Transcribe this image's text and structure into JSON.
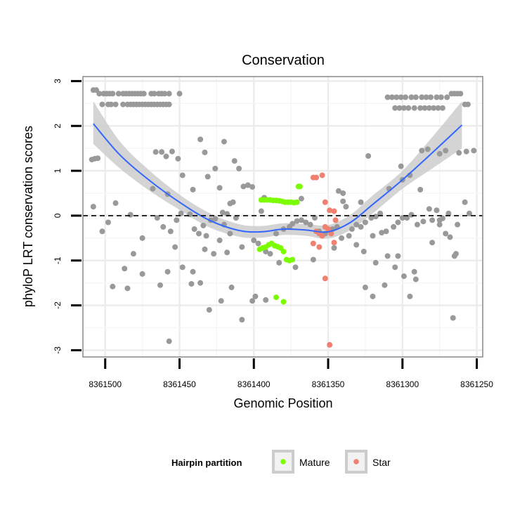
{
  "chart_data": {
    "type": "scatter",
    "title": "Conservation",
    "xlabel": "Genomic Position",
    "ylabel": "phyloP LRT conservation scores",
    "xlim": [
      8361515,
      8361246
    ],
    "ylim": [
      -3.15,
      3.1
    ],
    "x_reversed": true,
    "xticks": [
      8361500,
      8361450,
      8361400,
      8361350,
      8361300,
      8361250
    ],
    "xtick_labels": [
      "8361500",
      "8361450",
      "8361400",
      "8361350",
      "8361300",
      "8361250"
    ],
    "yticks": [
      -3,
      -2,
      -1,
      0,
      1,
      2,
      3
    ],
    "ytick_labels": [
      "-3",
      "-2",
      "-1",
      "0",
      "1",
      "2",
      "3"
    ],
    "reference_line": {
      "y": 0,
      "style": "dashed",
      "color": "#000000"
    },
    "grid": true,
    "colors": {
      "Other": "#999999",
      "Mature": "#7cfc00",
      "Star": "#f08070",
      "smooth_line": "#3366ff",
      "ribbon": "#cccccc",
      "panel_border": "#888888"
    },
    "legend": {
      "title": "Hairpin partition",
      "position": "bottom",
      "entries": [
        {
          "label": "Mature",
          "color": "#7cfc00"
        },
        {
          "label": "Star",
          "color": "#f08070"
        }
      ]
    },
    "smooth": {
      "x": [
        8361508,
        8361490,
        8361470,
        8361450,
        8361430,
        8361410,
        8361395,
        8361380,
        8361365,
        8361350,
        8361335,
        8361320,
        8361300,
        8361280,
        8361260
      ],
      "y": [
        2.05,
        1.35,
        0.78,
        0.3,
        -0.1,
        -0.33,
        -0.36,
        -0.3,
        -0.32,
        -0.36,
        -0.15,
        0.25,
        0.8,
        1.4,
        2.02
      ],
      "lower": [
        1.6,
        1.05,
        0.55,
        0.13,
        -0.26,
        -0.47,
        -0.49,
        -0.43,
        -0.45,
        -0.51,
        -0.32,
        0.05,
        0.6,
        1.05,
        1.5
      ],
      "upper": [
        2.55,
        1.65,
        1.0,
        0.47,
        0.06,
        -0.19,
        -0.23,
        -0.17,
        -0.19,
        -0.21,
        0.02,
        0.45,
        1.0,
        1.75,
        2.55
      ]
    },
    "series": [
      {
        "name": "Other",
        "x": [
          8361508,
          8361506,
          8361504,
          8361501,
          8361499,
          8361497,
          8361495,
          8361491,
          8361488,
          8361486,
          8361484,
          8361482,
          8361480,
          8361478,
          8361476,
          8361474,
          8361469,
          8361467,
          8361464,
          8361462,
          8361460,
          8361457,
          8361450,
          8361502,
          8361498,
          8361496,
          8361493,
          8361488,
          8361485,
          8361483,
          8361481,
          8361479,
          8361477,
          8361475,
          8361473,
          8361471,
          8361469,
          8361467,
          8361465,
          8361463,
          8361461,
          8361459,
          8361457,
          8361310,
          8361307,
          8361304,
          8361301,
          8361298,
          8361294,
          8361291,
          8361287,
          8361284,
          8361281,
          8361277,
          8361274,
          8361270,
          8361267,
          8361265,
          8361263,
          8361261,
          8361258,
          8361256,
          8361305,
          8361302,
          8361299,
          8361296,
          8361292,
          8361288,
          8361285,
          8361282,
          8361279,
          8361276,
          8361273,
          8361509,
          8361507,
          8361505,
          8361466,
          8361462,
          8361459,
          8361455,
          8361451,
          8361436,
          8361433,
          8361420,
          8361413,
          8361410,
          8361407,
          8361404,
          8361401,
          8361343,
          8361340,
          8361323,
          8361301,
          8361287,
          8361283,
          8361275,
          8361271,
          8361262,
          8361257,
          8361468,
          8361458,
          8361448,
          8361441,
          8361431,
          8361426,
          8361423,
          8361421,
          8361418,
          8361416,
          8361414,
          8361412,
          8361395,
          8361393,
          8361368,
          8361340,
          8361338,
          8361328,
          8361315,
          8361309,
          8361300,
          8361295,
          8361288,
          8361282,
          8361277,
          8361273,
          8361269,
          8361508,
          8361498,
          8361493,
          8361483,
          8361475,
          8361465,
          8361461,
          8361456,
          8361452,
          8361449,
          8361443,
          8361440,
          8361437,
          8361434,
          8361432,
          8361429,
          8361426,
          8361423,
          8361420,
          8361416,
          8361400,
          8361397,
          8361392,
          8361389,
          8361385,
          8361380,
          8361376,
          8361374,
          8361371,
          8361368,
          8361365,
          8361362,
          8361359,
          8361356,
          8361352,
          8361349,
          8361347,
          8361344,
          8361341,
          8361336,
          8361334,
          8361331,
          8361328,
          8361325,
          8361321,
          8361318,
          8361314,
          8361311,
          8361306,
          8361303,
          8361300,
          8361297,
          8361294,
          8361290,
          8361286,
          8361280,
          8361275,
          8361268,
          8361264,
          8361502,
          8361487,
          8361481,
          8361475,
          8361463,
          8361458,
          8361453,
          8361448,
          8361441,
          8361433,
          8361427,
          8361418,
          8361408,
          8361383,
          8361372,
          8361360,
          8361346,
          8361331,
          8361326,
          8361320,
          8361310,
          8361295,
          8361266,
          8361495,
          8361485,
          8361457,
          8361442,
          8361436,
          8361430,
          8361422,
          8361415,
          8361408,
          8361401,
          8361399,
          8361392,
          8361325,
          8361320,
          8361312,
          8361318,
          8361305,
          8361303,
          8361299,
          8361292,
          8361291,
          8361280,
          8361275,
          8361271,
          8361263,
          8361265,
          8361258,
          8361252,
          8361255
        ],
        "y": [
          2.8,
          2.8,
          2.72,
          2.72,
          2.72,
          2.72,
          2.72,
          2.72,
          2.72,
          2.72,
          2.72,
          2.72,
          2.72,
          2.72,
          2.72,
          2.72,
          2.72,
          2.72,
          2.72,
          2.72,
          2.72,
          2.72,
          2.72,
          2.48,
          2.48,
          2.48,
          2.48,
          2.48,
          2.48,
          2.48,
          2.48,
          2.48,
          2.48,
          2.48,
          2.48,
          2.48,
          2.48,
          2.48,
          2.48,
          2.48,
          2.48,
          2.48,
          2.48,
          2.64,
          2.64,
          2.64,
          2.64,
          2.64,
          2.64,
          2.64,
          2.64,
          2.64,
          2.64,
          2.64,
          2.64,
          2.64,
          2.72,
          2.72,
          2.72,
          2.72,
          2.48,
          2.48,
          2.4,
          2.4,
          2.4,
          2.4,
          2.4,
          2.4,
          2.4,
          2.4,
          2.4,
          2.4,
          2.4,
          1.25,
          1.27,
          1.28,
          1.42,
          1.42,
          1.32,
          1.43,
          1.27,
          1.7,
          1.41,
          1.65,
          1.22,
          1.05,
          0.65,
          0.68,
          0.64,
          0.55,
          0.5,
          1.33,
          1.1,
          1.45,
          1.48,
          1.38,
          1.45,
          1.4,
          1.43,
          0.6,
          0.48,
          0.9,
          0.58,
          0.87,
          1.05,
          0.62,
          0.07,
          0.04,
          0.27,
          0.3,
          -0.05,
          0.1,
          0.4,
          0.38,
          0.32,
          0.2,
          0.3,
          0.05,
          0.6,
          0.8,
          0.9,
          0.58,
          0.15,
          0.12,
          -0.06,
          0.05,
          0.2,
          -0.15,
          0.28,
          0.02,
          -0.5,
          -0.05,
          -0.25,
          -0.35,
          -0.1,
          0.05,
          0.03,
          -0.3,
          -0.4,
          -0.22,
          -0.45,
          -0.1,
          -0.07,
          -0.55,
          -0.2,
          -0.4,
          -0.55,
          -0.62,
          -0.8,
          -0.85,
          -0.4,
          -0.3,
          -0.25,
          -0.18,
          -0.12,
          -0.1,
          -0.15,
          -0.2,
          -0.05,
          -0.35,
          -0.4,
          -0.32,
          -0.3,
          -0.25,
          -0.5,
          -0.45,
          -0.3,
          -0.2,
          -0.25,
          -0.15,
          -0.05,
          -0.02,
          -0.38,
          -0.35,
          -0.25,
          -0.15,
          -0.05,
          -0.05,
          0.02,
          -0.2,
          -0.13,
          -0.1,
          -0.2,
          -0.48,
          -0.85,
          -0.35,
          -1.18,
          -0.85,
          -1.3,
          -1.55,
          -1.25,
          -0.7,
          -1.15,
          -1.25,
          -0.75,
          -0.85,
          -0.82,
          -0.7,
          -1.05,
          -1.15,
          -0.98,
          -0.72,
          -0.65,
          -0.8,
          -0.45,
          -0.9,
          -1.8,
          -2.28,
          -1.58,
          -1.62,
          -2.8,
          -1.52,
          -1.5,
          -2.1,
          -1.9,
          -1.6,
          -2.32,
          -1.9,
          -1.8,
          -1.88,
          -1.6,
          -1.8,
          -1.55,
          -1.05,
          -1.15,
          -0.9,
          -1.35,
          -1.25,
          -1.42,
          -0.6,
          -0.1,
          -0.4,
          -0.2,
          -0.9,
          0.3,
          1.45,
          0.05
        ],
        "size": 4
      },
      {
        "name": "Mature",
        "x": [
          8361395,
          8361393,
          8361391,
          8361389,
          8361387,
          8361385,
          8361383,
          8361381,
          8361379,
          8361377,
          8361375,
          8361373,
          8361371,
          8361369,
          8361396,
          8361394,
          8361392,
          8361390,
          8361388,
          8361386,
          8361384,
          8361382,
          8361380,
          8361378,
          8361376,
          8361374,
          8361385,
          8361380,
          8361370
        ],
        "y": [
          0.35,
          0.35,
          0.35,
          0.35,
          0.34,
          0.34,
          0.33,
          0.32,
          0.3,
          0.3,
          0.3,
          0.29,
          0.3,
          0.65,
          -0.75,
          -0.72,
          -0.7,
          -0.65,
          -0.62,
          -0.67,
          -0.69,
          -0.72,
          -0.8,
          -0.98,
          -1.0,
          -0.98,
          -1.82,
          -1.92,
          0.65
        ],
        "size": 4
      },
      {
        "name": "Star",
        "x": [
          8361360,
          8361358,
          8361354,
          8361352,
          8361349,
          8361346,
          8361345,
          8361358,
          8361356,
          8361354,
          8361352,
          8361350,
          8361348,
          8361346,
          8361360,
          8361356,
          8361352,
          8361349
        ],
        "y": [
          0.85,
          0.85,
          0.9,
          0.3,
          0.12,
          0.1,
          -0.1,
          -0.35,
          -0.4,
          -0.45,
          -0.25,
          -0.3,
          -0.4,
          -0.6,
          -0.62,
          -0.7,
          -1.4,
          -2.88
        ],
        "size": 4
      }
    ]
  }
}
